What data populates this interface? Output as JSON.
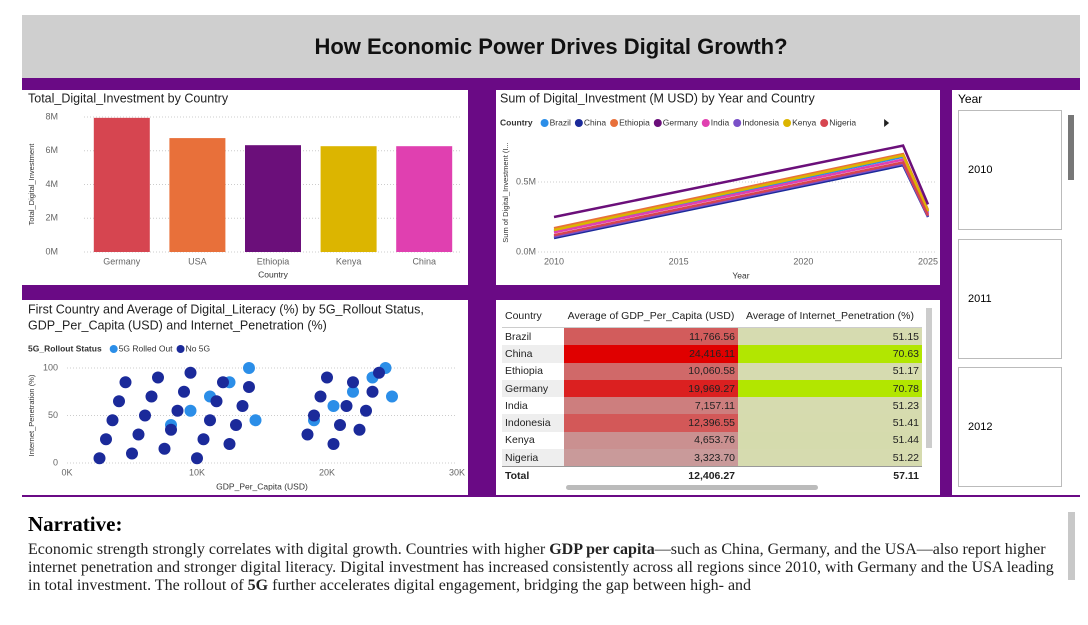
{
  "header": {
    "title": "How Economic Power Drives Digital Growth?"
  },
  "chart_data": [
    {
      "type": "bar",
      "title": "Total_Digital_Investment by Country",
      "x_label": "Country",
      "y_label": "Total_Digital_Investment",
      "categories": [
        "Germany",
        "USA",
        "Ethiopia",
        "Kenya",
        "China"
      ],
      "values": [
        7950000,
        6750000,
        6330000,
        6270000,
        6270000
      ],
      "colors": [
        "#d64550",
        "#e8703a",
        "#6b0f7a",
        "#dcb500",
        "#e040b0"
      ],
      "ylim": [
        0,
        8000000
      ],
      "yticks": [
        {
          "value": 0,
          "label": "0M"
        },
        {
          "value": 2000000,
          "label": "2M"
        },
        {
          "value": 4000000,
          "label": "4M"
        },
        {
          "value": 6000000,
          "label": "6M"
        },
        {
          "value": 8000000,
          "label": "8M"
        }
      ],
      "grid": true
    },
    {
      "type": "line",
      "title": "Sum of Digital_Investment (M USD) by Year and Country",
      "x_label": "Year",
      "y_label": "Sum of Digital_Investment (I...",
      "legend_title": "Country",
      "x": [
        2010,
        2024,
        2025
      ],
      "series": [
        {
          "name": "Brazil",
          "color": "#2b8ee8",
          "values": [
            150000,
            680000,
            280000
          ]
        },
        {
          "name": "China",
          "color": "#1b2a9a",
          "values": [
            100000,
            620000,
            250000
          ]
        },
        {
          "name": "Ethiopia",
          "color": "#e8703a",
          "values": [
            170000,
            700000,
            300000
          ]
        },
        {
          "name": "Germany",
          "color": "#6b0f7a",
          "values": [
            250000,
            760000,
            340000
          ]
        },
        {
          "name": "India",
          "color": "#e040b0",
          "values": [
            140000,
            660000,
            270000
          ]
        },
        {
          "name": "Indonesia",
          "color": "#7a50c8",
          "values": [
            110000,
            630000,
            255000
          ]
        },
        {
          "name": "Kenya",
          "color": "#dcb500",
          "values": [
            157000,
            690000,
            290000
          ]
        },
        {
          "name": "Nigeria",
          "color": "#d64550",
          "values": [
            120000,
            640000,
            260000
          ]
        }
      ],
      "xlim": [
        2010,
        2025
      ],
      "xticks": [
        2010,
        2015,
        2020,
        2025
      ],
      "ylim": [
        0,
        850000
      ],
      "yticks": [
        {
          "value": 0,
          "label": "0.0M"
        },
        {
          "value": 500000,
          "label": "0.5M"
        }
      ],
      "grid": true
    },
    {
      "type": "scatter",
      "title": "First Country and Average of Digital_Literacy (%) by 5G_Rollout Status,",
      "subtitle": "GDP_Per_Capita (USD) and Internet_Penetration (%)",
      "x_label": "GDP_Per_Capita (USD)",
      "y_label": "Internet_Penetration (%)",
      "legend_title": "5G_Rollout Status",
      "series": [
        {
          "name": "5G Rolled Out",
          "color": "#2b8ee8",
          "x": [
            8000,
            9500,
            11000,
            12500,
            14000,
            14500,
            19000,
            20500,
            22000,
            23500,
            24500,
            25000
          ],
          "values": [
            40,
            55,
            70,
            85,
            100,
            45,
            45,
            60,
            75,
            90,
            100,
            70
          ]
        },
        {
          "name": "No 5G",
          "color": "#1b2a9a",
          "x": [
            2500,
            3000,
            3500,
            4000,
            4500,
            5000,
            5500,
            6000,
            6500,
            7000,
            7500,
            8000,
            8500,
            9000,
            9500,
            10000,
            10500,
            11000,
            11500,
            12000,
            12500,
            13000,
            13500,
            14000,
            18500,
            19000,
            19500,
            20000,
            20500,
            21000,
            21500,
            22000,
            22500,
            23000,
            23500,
            24000
          ],
          "values": [
            5,
            25,
            45,
            65,
            85,
            10,
            30,
            50,
            70,
            90,
            15,
            35,
            55,
            75,
            95,
            5,
            25,
            45,
            65,
            85,
            20,
            40,
            60,
            80,
            30,
            50,
            70,
            90,
            20,
            40,
            60,
            85,
            35,
            55,
            75,
            95
          ]
        }
      ],
      "xlim": [
        0,
        30000
      ],
      "xticks": [
        {
          "value": 0,
          "label": "0K"
        },
        {
          "value": 10000,
          "label": "10K"
        },
        {
          "value": 20000,
          "label": "20K"
        },
        {
          "value": 30000,
          "label": "30K"
        }
      ],
      "ylim": [
        0,
        100
      ],
      "yticks": [
        0,
        50,
        100
      ],
      "grid": true
    }
  ],
  "table": {
    "columns": [
      "Country",
      "Average of GDP_Per_Capita (USD)",
      "Average of Internet_Penetration (%)"
    ],
    "rows": [
      [
        "Brazil",
        "11,766.56",
        "51.15"
      ],
      [
        "China",
        "24,416.11",
        "70.63"
      ],
      [
        "Ethiopia",
        "10,060.58",
        "51.17"
      ],
      [
        "Germany",
        "19,969.27",
        "70.78"
      ],
      [
        "India",
        "7,157.11",
        "51.23"
      ],
      [
        "Indonesia",
        "12,396.55",
        "51.41"
      ],
      [
        "Kenya",
        "4,653.76",
        "51.44"
      ],
      [
        "Nigeria",
        "3,323.70",
        "51.22"
      ]
    ],
    "total": [
      "Total",
      "12,406.27",
      "57.11"
    ],
    "column_scale_colors": [
      null,
      [
        "#c99a9a",
        "#e00000"
      ],
      [
        "#d6dbb0",
        "#b2e600"
      ]
    ]
  },
  "slicer": {
    "title": "Year",
    "items": [
      "2010",
      "2011",
      "2012"
    ]
  },
  "narrative": {
    "title": "Narrative:",
    "segments": [
      {
        "text": "Economic strength strongly correlates with digital growth. Countries with higher ",
        "bold": false
      },
      {
        "text": "GDP per capita",
        "bold": true
      },
      {
        "text": "—such as China, Germany, and the USA—also report higher internet penetration and stronger digital literacy. Digital investment has increased consistently across all regions since 2010, with Germany and the USA leading in total investment. The rollout of ",
        "bold": false
      },
      {
        "text": "5G",
        "bold": true
      },
      {
        "text": " further accelerates digital engagement, bridging the gap between high- and",
        "bold": false
      }
    ]
  }
}
